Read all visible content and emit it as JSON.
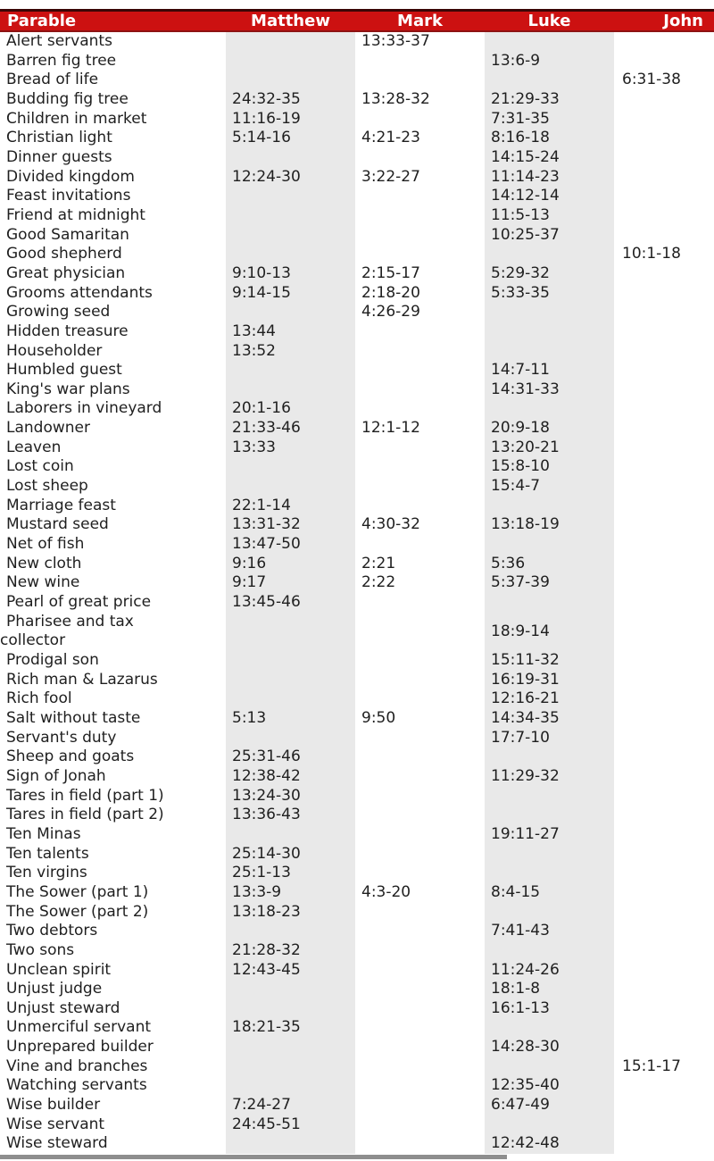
{
  "colors": {
    "header_background": "#cc1111",
    "header_border_top": "#3a0606",
    "header_border_bottom": "#8d1313",
    "header_text": "#ffffff",
    "stripe_gray": "#e9e9e9",
    "body_text": "#1f1f1f",
    "bottom_bar_gray": "#8e8e8e"
  },
  "header": {
    "columns": [
      "Parable",
      "Matthew",
      "Mark",
      "Luke",
      "John"
    ]
  },
  "rows": [
    {
      "parable": "Alert servants",
      "matthew": "",
      "mark": "13:33-37",
      "luke": "",
      "john": ""
    },
    {
      "parable": "Barren fig tree",
      "matthew": "",
      "mark": "",
      "luke": "13:6-9",
      "john": ""
    },
    {
      "parable": "Bread of life",
      "matthew": "",
      "mark": "",
      "luke": "",
      "john": "6:31-38"
    },
    {
      "parable": "Budding fig tree",
      "matthew": "24:32-35",
      "mark": "13:28-32",
      "luke": "21:29-33",
      "john": ""
    },
    {
      "parable": "Children in market",
      "matthew": "11:16-19",
      "mark": "",
      "luke": "7:31-35",
      "john": ""
    },
    {
      "parable": "Christian light",
      "matthew": "5:14-16",
      "mark": "4:21-23",
      "luke": "8:16-18",
      "john": ""
    },
    {
      "parable": "Dinner guests",
      "matthew": "",
      "mark": "",
      "luke": "14:15-24",
      "john": ""
    },
    {
      "parable": "Divided kingdom",
      "matthew": "12:24-30",
      "mark": "3:22-27",
      "luke": "11:14-23",
      "john": ""
    },
    {
      "parable": "Feast invitations",
      "matthew": "",
      "mark": "",
      "luke": "14:12-14",
      "john": ""
    },
    {
      "parable": "Friend at midnight",
      "matthew": "",
      "mark": "",
      "luke": "11:5-13",
      "john": ""
    },
    {
      "parable": "Good Samaritan",
      "matthew": "",
      "mark": "",
      "luke": "10:25-37",
      "john": ""
    },
    {
      "parable": "Good shepherd",
      "matthew": "",
      "mark": "",
      "luke": "",
      "john": "10:1-18"
    },
    {
      "parable": "Great physician",
      "matthew": "9:10-13",
      "mark": "2:15-17",
      "luke": "5:29-32",
      "john": ""
    },
    {
      "parable": "Grooms attendants",
      "matthew": "9:14-15",
      "mark": "2:18-20",
      "luke": "5:33-35",
      "john": ""
    },
    {
      "parable": "Growing seed",
      "matthew": "",
      "mark": "4:26-29",
      "luke": "",
      "john": ""
    },
    {
      "parable": "Hidden treasure",
      "matthew": "13:44",
      "mark": "",
      "luke": "",
      "john": ""
    },
    {
      "parable": "Householder",
      "matthew": "13:52",
      "mark": "",
      "luke": "",
      "john": ""
    },
    {
      "parable": "Humbled guest",
      "matthew": "",
      "mark": "",
      "luke": "14:7-11",
      "john": ""
    },
    {
      "parable": "King's war plans",
      "matthew": "",
      "mark": "",
      "luke": "14:31-33",
      "john": ""
    },
    {
      "parable": "Laborers in vineyard",
      "matthew": "20:1-16",
      "mark": "",
      "luke": "",
      "john": ""
    },
    {
      "parable": "Landowner",
      "matthew": "21:33-46",
      "mark": "12:1-12",
      "luke": "20:9-18",
      "john": ""
    },
    {
      "parable": "Leaven",
      "matthew": "13:33",
      "mark": "",
      "luke": "13:20-21",
      "john": ""
    },
    {
      "parable": "Lost coin",
      "matthew": "",
      "mark": "",
      "luke": "15:8-10",
      "john": ""
    },
    {
      "parable": "Lost sheep",
      "matthew": "",
      "mark": "",
      "luke": "15:4-7",
      "john": ""
    },
    {
      "parable": "Marriage feast",
      "matthew": "22:1-14",
      "mark": "",
      "luke": "",
      "john": ""
    },
    {
      "parable": "Mustard seed",
      "matthew": "13:31-32",
      "mark": "4:30-32",
      "luke": "13:18-19",
      "john": ""
    },
    {
      "parable": "Net of fish",
      "matthew": "13:47-50",
      "mark": "",
      "luke": "",
      "john": ""
    },
    {
      "parable": "New cloth",
      "matthew": "9:16",
      "mark": "2:21",
      "luke": "5:36",
      "john": ""
    },
    {
      "parable": "New wine",
      "matthew": "9:17",
      "mark": "2:22",
      "luke": "5:37-39",
      "john": ""
    },
    {
      "parable": "Pearl of great price",
      "matthew": "13:45-46",
      "mark": "",
      "luke": "",
      "john": ""
    },
    {
      "parable": "Pharisee and tax\ncollector",
      "matthew": "",
      "mark": "",
      "luke": "18:9-14",
      "john": ""
    },
    {
      "parable": "Prodigal son",
      "matthew": "",
      "mark": "",
      "luke": "15:11-32",
      "john": ""
    },
    {
      "parable": "Rich man & Lazarus",
      "matthew": "",
      "mark": "",
      "luke": "16:19-31",
      "john": ""
    },
    {
      "parable": "Rich fool",
      "matthew": "",
      "mark": "",
      "luke": "12:16-21",
      "john": ""
    },
    {
      "parable": "Salt without taste",
      "matthew": "5:13",
      "mark": "9:50",
      "luke": "14:34-35",
      "john": ""
    },
    {
      "parable": "Servant's duty",
      "matthew": "",
      "mark": "",
      "luke": "17:7-10",
      "john": ""
    },
    {
      "parable": "Sheep and goats",
      "matthew": "25:31-46",
      "mark": "",
      "luke": "",
      "john": ""
    },
    {
      "parable": "Sign of Jonah",
      "matthew": "12:38-42",
      "mark": "",
      "luke": "11:29-32",
      "john": ""
    },
    {
      "parable": "Tares in field (part 1)",
      "matthew": "13:24-30",
      "mark": "",
      "luke": "",
      "john": ""
    },
    {
      "parable": "Tares in field (part 2)",
      "matthew": "13:36-43",
      "mark": "",
      "luke": "",
      "john": ""
    },
    {
      "parable": "Ten Minas",
      "matthew": "",
      "mark": "",
      "luke": "19:11-27",
      "john": ""
    },
    {
      "parable": "Ten talents",
      "matthew": "25:14-30",
      "mark": "",
      "luke": "",
      "john": ""
    },
    {
      "parable": "Ten virgins",
      "matthew": "25:1-13",
      "mark": "",
      "luke": "",
      "john": ""
    },
    {
      "parable": "The Sower (part 1)",
      "matthew": "13:3-9",
      "mark": "4:3-20",
      "luke": "8:4-15",
      "john": ""
    },
    {
      "parable": "The Sower (part 2)",
      "matthew": "13:18-23",
      "mark": "",
      "luke": "",
      "john": ""
    },
    {
      "parable": "Two debtors",
      "matthew": "",
      "mark": "",
      "luke": "7:41-43",
      "john": ""
    },
    {
      "parable": "Two sons",
      "matthew": "21:28-32",
      "mark": "",
      "luke": "",
      "john": ""
    },
    {
      "parable": "Unclean spirit",
      "matthew": "12:43-45",
      "mark": "",
      "luke": "11:24-26",
      "john": ""
    },
    {
      "parable": "Unjust judge",
      "matthew": "",
      "mark": "",
      "luke": "18:1-8",
      "john": ""
    },
    {
      "parable": "Unjust steward",
      "matthew": "",
      "mark": "",
      "luke": "16:1-13",
      "john": ""
    },
    {
      "parable": "Unmerciful servant",
      "matthew": "18:21-35",
      "mark": "",
      "luke": "",
      "john": ""
    },
    {
      "parable": "Unprepared builder",
      "matthew": "",
      "mark": "",
      "luke": "14:28-30",
      "john": ""
    },
    {
      "parable": "Vine and branches",
      "matthew": "",
      "mark": "",
      "luke": "",
      "john": "15:1-17"
    },
    {
      "parable": "Watching servants",
      "matthew": "",
      "mark": "",
      "luke": "12:35-40",
      "john": ""
    },
    {
      "parable": "Wise builder",
      "matthew": "7:24-27",
      "mark": "",
      "luke": "6:47-49",
      "john": ""
    },
    {
      "parable": "Wise servant",
      "matthew": "24:45-51",
      "mark": "",
      "luke": "",
      "john": ""
    },
    {
      "parable": "Wise steward",
      "matthew": "",
      "mark": "",
      "luke": "12:42-48",
      "john": ""
    }
  ]
}
